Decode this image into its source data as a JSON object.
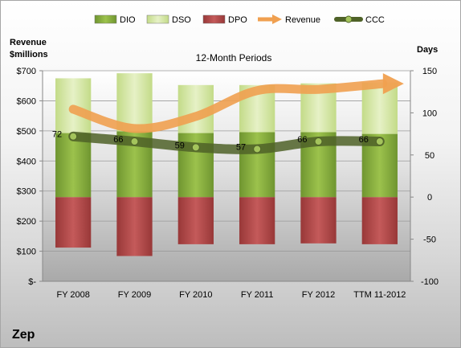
{
  "footer": {
    "company": "Zep"
  },
  "chart_data": {
    "type": "bar",
    "title": "12-Month Periods",
    "left_axis_label": [
      "Revenue",
      "$millions"
    ],
    "right_axis_label": "Days",
    "categories": [
      "FY 2008",
      "FY 2009",
      "FY 2010",
      "FY 2011",
      "FY 2012",
      "TTM 11-2012"
    ],
    "left_ticks": [
      "$-",
      "$100",
      "$200",
      "$300",
      "$400",
      "$500",
      "$600",
      "$700"
    ],
    "ylim_left": [
      0,
      700
    ],
    "right_ticks": [
      "-100",
      "-50",
      "0",
      "50",
      "100",
      "150"
    ],
    "ylim_right": [
      -100,
      150
    ],
    "grid": true,
    "legend_position": "top",
    "series": [
      {
        "name": "DIO",
        "kind": "bar",
        "axis": "right",
        "color": "#8db43e",
        "values": [
          76,
          78,
          76,
          77,
          77,
          75
        ]
      },
      {
        "name": "DSO",
        "kind": "bar",
        "axis": "right",
        "color": "#d4e6a6",
        "values": [
          65,
          69,
          57,
          56,
          58,
          61
        ]
      },
      {
        "name": "DPO",
        "kind": "bar",
        "axis": "right",
        "color": "#b94c4c",
        "values": [
          -60,
          -70,
          -56,
          -56,
          -55,
          -56
        ]
      },
      {
        "name": "Revenue",
        "kind": "line",
        "axis": "left",
        "color": "#f0a050",
        "values": [
          572,
          508,
          548,
          634,
          638,
          657
        ]
      },
      {
        "name": "CCC",
        "kind": "line",
        "axis": "right",
        "color": "#4f6228",
        "values": [
          72,
          66,
          59,
          57,
          66,
          66
        ]
      }
    ],
    "ccc_labels": [
      "72",
      "66",
      "59",
      "57",
      "66",
      "66"
    ]
  }
}
